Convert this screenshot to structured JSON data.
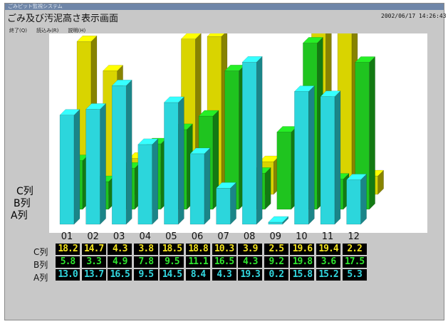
{
  "window": {
    "titlebar_text": "ごみピット監視システム",
    "heading": "ごみ及び汚泥高さ表示画面",
    "datetime": "2002/06/17 14:26:43"
  },
  "menu": [
    {
      "label": "終了(Q)"
    },
    {
      "label": "読込み(R)"
    },
    {
      "label": "説明(H)"
    }
  ],
  "chart_data": {
    "type": "bar",
    "categories": [
      "01",
      "02",
      "03",
      "04",
      "05",
      "06",
      "07",
      "08",
      "09",
      "10",
      "11",
      "12"
    ],
    "row_labels": [
      "C列",
      "B列",
      "A列"
    ],
    "series": [
      {
        "name": "C列",
        "color": "#d9d400",
        "values": [
          18.2,
          14.7,
          4.3,
          3.8,
          18.5,
          18.8,
          10.3,
          3.9,
          2.5,
          19.6,
          19.4,
          2.2
        ]
      },
      {
        "name": "B列",
        "color": "#1fc41f",
        "values": [
          5.8,
          3.3,
          4.9,
          7.8,
          9.5,
          11.1,
          16.5,
          4.3,
          9.2,
          19.8,
          3.6,
          17.5
        ]
      },
      {
        "name": "A列",
        "color": "#2cd6dc",
        "values": [
          13.0,
          13.7,
          16.5,
          9.5,
          14.5,
          8.4,
          4.3,
          19.3,
          0.2,
          15.8,
          15.2,
          5.3
        ]
      }
    ],
    "ylim": [
      0,
      20
    ]
  },
  "table": {
    "row_labels": [
      "C列",
      "B列",
      "A列"
    ]
  }
}
